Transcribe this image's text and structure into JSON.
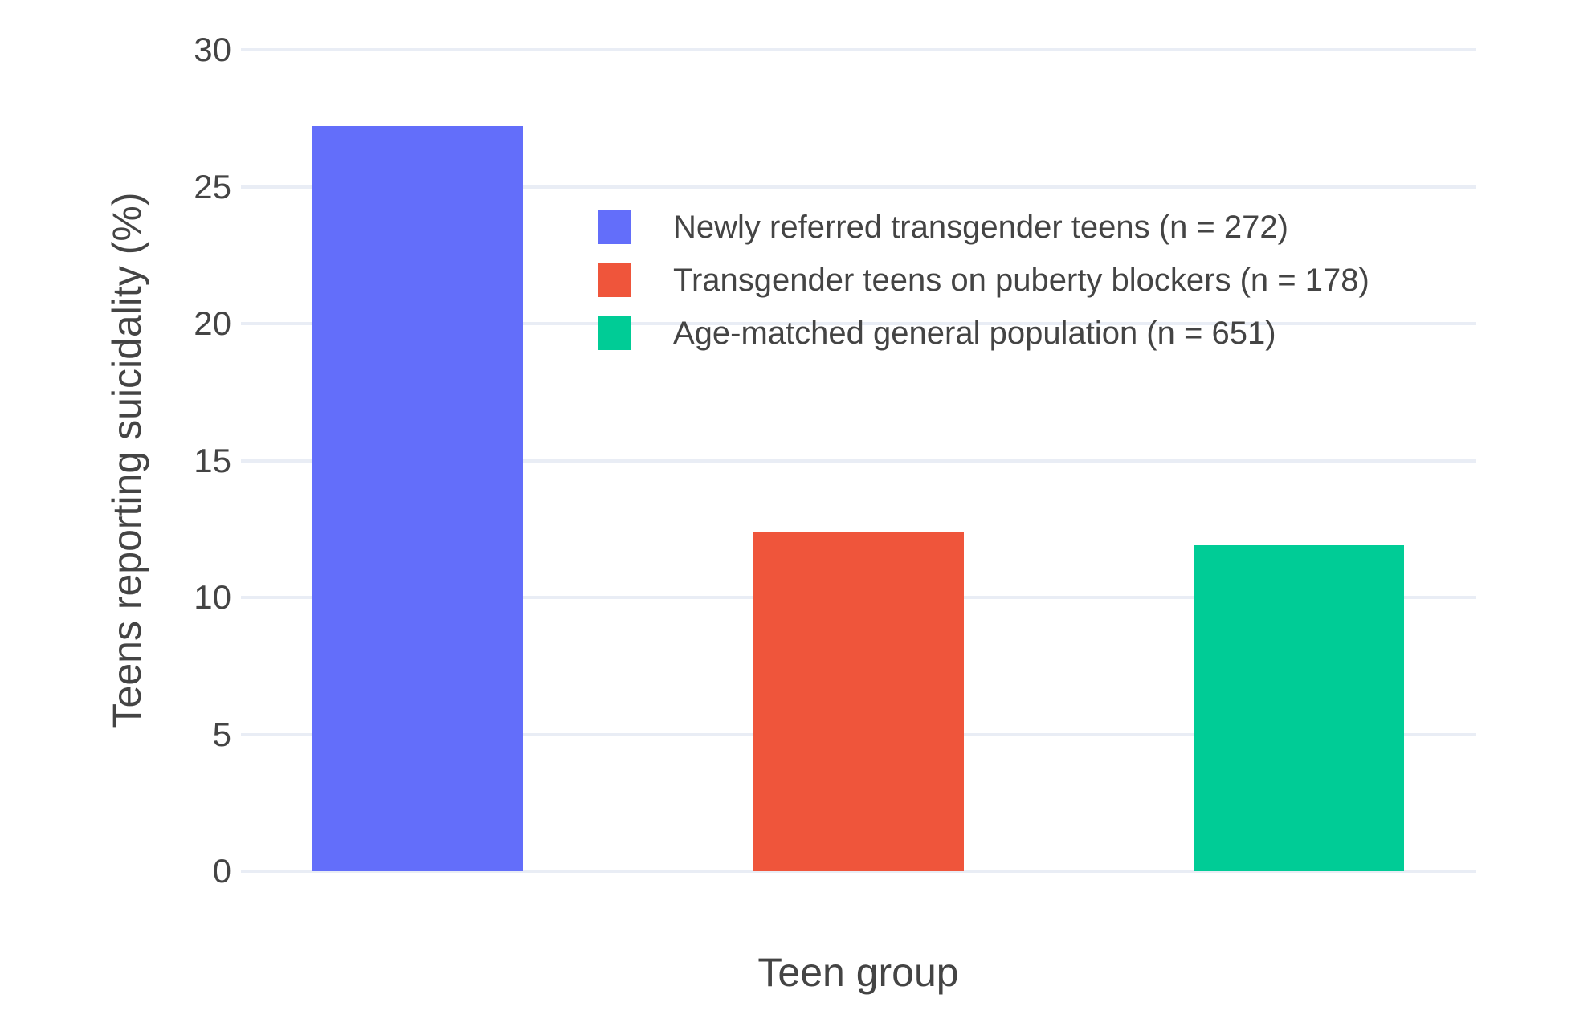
{
  "chart_data": {
    "type": "bar",
    "title": "",
    "xlabel": "Teen group",
    "ylabel": "Teens reporting suicidality (%)",
    "categories": [
      "Newly referred transgender teens (n = 272)",
      "Transgender teens on puberty blockers (n = 178)",
      "Age-matched general population (n = 651)"
    ],
    "values": [
      27.2,
      12.4,
      11.9
    ],
    "bar_colors": [
      "#636EFA",
      "#EF553B",
      "#00CC96"
    ],
    "ylim": [
      0,
      30
    ],
    "yticks": [
      0,
      5,
      10,
      15,
      20,
      25,
      30
    ],
    "grid": true,
    "legend_position": "inside-top-left",
    "legend_entries": [
      {
        "label": "Newly referred transgender teens (n = 272)",
        "color": "#636EFA"
      },
      {
        "label": "Transgender teens on puberty blockers (n = 178)",
        "color": "#EF553B"
      },
      {
        "label": "Age-matched general population (n = 651)",
        "color": "#00CC96"
      }
    ]
  },
  "colors": {
    "background": "#FFFFFF",
    "gridline": "#E9EDF5",
    "text": "#444444"
  }
}
